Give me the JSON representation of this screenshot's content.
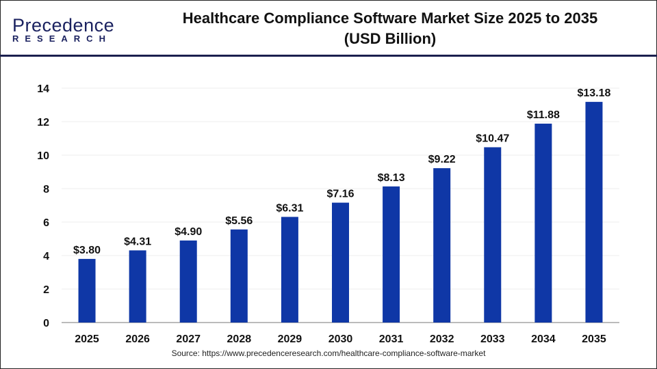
{
  "logo": {
    "text_top": "Precedence",
    "text_bottom": "RESEARCH"
  },
  "title_line1": "Healthcare Compliance Software Market Size 2025 to 2035",
  "title_line2": "(USD Billion)",
  "source": "Source: https://www.precedenceresearch.com/healthcare-compliance-software-market",
  "colors": {
    "bar": "#0f37a6",
    "header_line": "#1a1f4e"
  },
  "chart_data": {
    "type": "bar",
    "title": "Healthcare Compliance Software Market Size 2025 to 2035 (USD Billion)",
    "categories": [
      "2025",
      "2026",
      "2027",
      "2028",
      "2029",
      "2030",
      "2031",
      "2032",
      "2033",
      "2034",
      "2035"
    ],
    "values": [
      3.8,
      4.31,
      4.9,
      5.56,
      6.31,
      7.16,
      8.13,
      9.22,
      10.47,
      11.88,
      13.18
    ],
    "data_labels": [
      "$3.80",
      "$4.31",
      "$4.90",
      "$5.56",
      "$6.31",
      "$7.16",
      "$8.13",
      "$9.22",
      "$10.47",
      "$11.88",
      "$13.18"
    ],
    "xlabel": "",
    "ylabel": "",
    "ylim": [
      0,
      14
    ],
    "yticks": [
      "0",
      "2",
      "4",
      "6",
      "8",
      "10",
      "12",
      "14"
    ],
    "grid": true,
    "legend": "none"
  }
}
